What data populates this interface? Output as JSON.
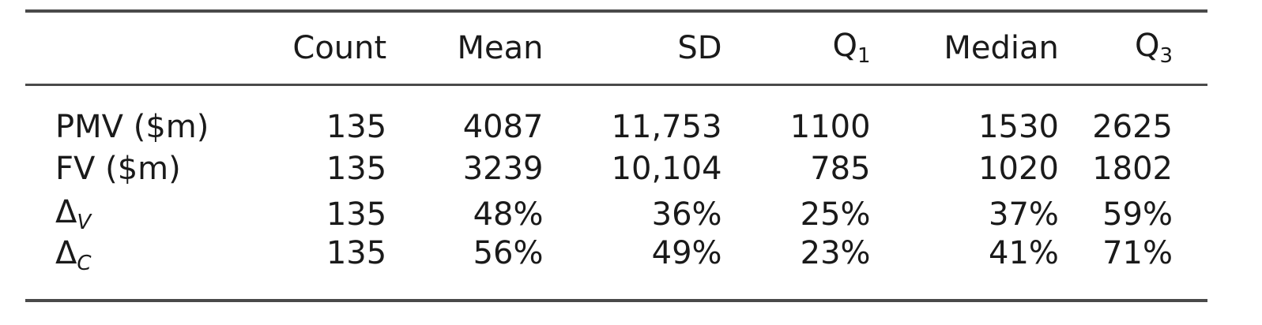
{
  "table": {
    "columns": [
      {
        "label": "Count",
        "sub": ""
      },
      {
        "label": "Mean",
        "sub": ""
      },
      {
        "label": "SD",
        "sub": ""
      },
      {
        "label": "Q",
        "sub": "1"
      },
      {
        "label": "Median",
        "sub": ""
      },
      {
        "label": "Q",
        "sub": "3"
      }
    ],
    "rows": [
      {
        "label": "PMV ($m)",
        "sub": "",
        "values": [
          "135",
          "4087",
          "11,753",
          "1100",
          "1530",
          "2625"
        ]
      },
      {
        "label": "FV ($m)",
        "sub": "",
        "values": [
          "135",
          "3239",
          "10,104",
          "785",
          "1020",
          "1802"
        ]
      },
      {
        "label": "Δ",
        "sub": "V",
        "values": [
          "135",
          "48%",
          "36%",
          "25%",
          "37%",
          "59%"
        ]
      },
      {
        "label": "Δ",
        "sub": "C",
        "values": [
          "135",
          "56%",
          "49%",
          "23%",
          "41%",
          "71%"
        ]
      }
    ]
  }
}
